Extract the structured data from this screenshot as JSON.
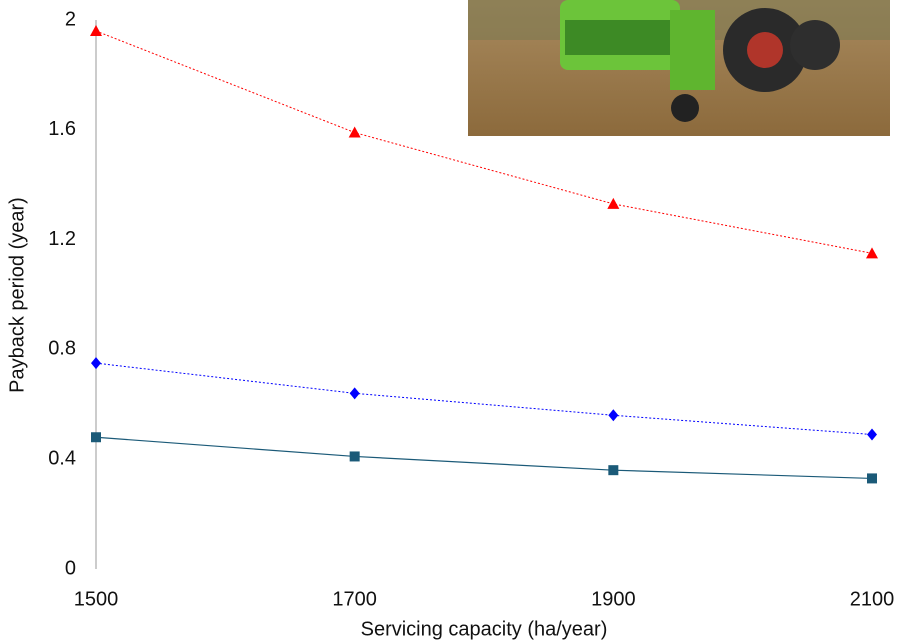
{
  "chart_data": {
    "type": "line",
    "x_label": "Servicing capacity (ha/year)",
    "y_label": "Payback period (year)",
    "x": [
      1500,
      1700,
      1900,
      2100
    ],
    "series": [
      {
        "color": "#ff0000",
        "marker": "triangle",
        "line": "dotted",
        "values": [
          1.96,
          1.59,
          1.33,
          1.15
        ]
      },
      {
        "color": "#0000ff",
        "marker": "diamond",
        "line": "dotted",
        "values": [
          0.75,
          0.64,
          0.56,
          0.49
        ]
      },
      {
        "color": "#1b5a78",
        "marker": "square",
        "line": "solid",
        "values": [
          0.48,
          0.41,
          0.36,
          0.33
        ]
      }
    ],
    "xlim": [
      1500,
      2100
    ],
    "xticks": [
      1500,
      1700,
      1900,
      2100
    ],
    "ylim": [
      0,
      2
    ],
    "yticks": [
      0,
      0.4,
      0.8,
      1.2,
      1.6,
      2
    ]
  }
}
